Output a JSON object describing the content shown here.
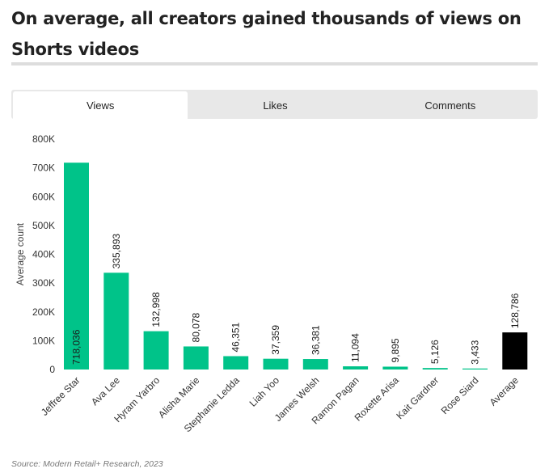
{
  "header": {
    "title": "On average, all creators gained thousands of views on Shorts videos"
  },
  "tabs": [
    {
      "label": "Views",
      "active": true
    },
    {
      "label": "Likes",
      "active": false
    },
    {
      "label": "Comments",
      "active": false
    }
  ],
  "colors": {
    "bar": "#00c389",
    "average_bar": "#000000",
    "tab_background": "#e8e8e8"
  },
  "chart_data": {
    "type": "bar",
    "title": "",
    "xlabel": "",
    "ylabel": "Average count",
    "ylim": [
      0,
      800000
    ],
    "yticks": [
      0,
      100000,
      200000,
      300000,
      400000,
      500000,
      600000,
      700000,
      800000
    ],
    "ytick_labels": [
      "0",
      "100K",
      "200K",
      "300K",
      "400K",
      "500K",
      "600K",
      "700K",
      "800K"
    ],
    "categories": [
      "Jeffree Star",
      "Ava Lee",
      "Hyram Yarbro",
      "Alisha Marie",
      "Stephanie Ledda",
      "Liah Yoo",
      "James Welsh",
      "Ramon Pagan",
      "Roxette Arisa",
      "Kait Gardner",
      "Rose Siard",
      "Average"
    ],
    "values": [
      718036,
      335893,
      132998,
      80078,
      46351,
      37359,
      36381,
      11094,
      9895,
      5126,
      3433,
      128786
    ],
    "value_labels": [
      "718,036",
      "335,893",
      "132,998",
      "80,078",
      "46,351",
      "37,359",
      "36,381",
      "11,094",
      "9,895",
      "5,126",
      "3,433",
      "128,786"
    ],
    "highlight_category": "Average",
    "grid": false
  },
  "footer": {
    "source": "Source: Modern Retail+ Research, 2023"
  }
}
